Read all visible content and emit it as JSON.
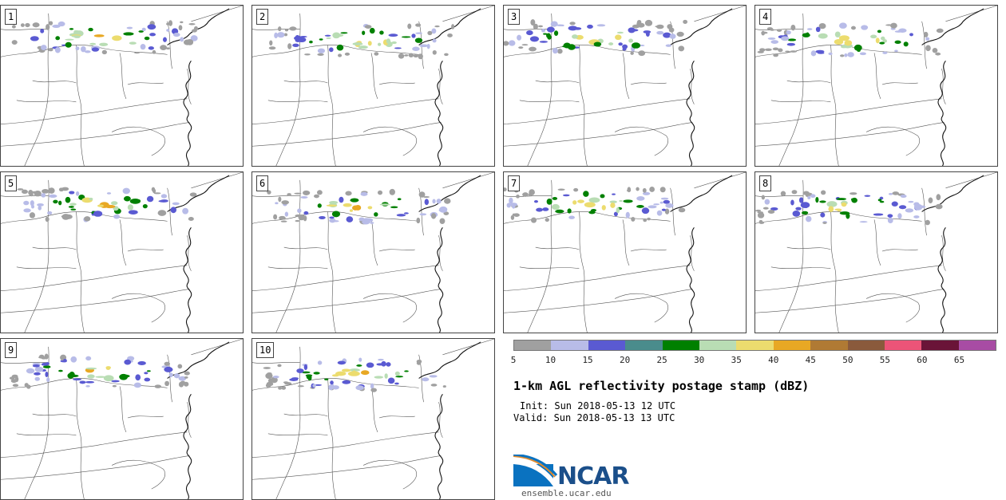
{
  "panels": [
    {
      "label": "1"
    },
    {
      "label": "2"
    },
    {
      "label": "3"
    },
    {
      "label": "4"
    },
    {
      "label": "5"
    },
    {
      "label": "6"
    },
    {
      "label": "7"
    },
    {
      "label": "8"
    },
    {
      "label": "9"
    },
    {
      "label": "10"
    }
  ],
  "legend": {
    "colors": [
      "#a0a0a0",
      "#b8bce8",
      "#5a5ad2",
      "#4a8c8c",
      "#008000",
      "#b9ddb4",
      "#ecdc6e",
      "#e8a824",
      "#b07a34",
      "#8a5a3c",
      "#ec5478",
      "#6a1438",
      "#a84ca4"
    ],
    "ticks": [
      "5",
      "10",
      "15",
      "20",
      "25",
      "30",
      "35",
      "40",
      "45",
      "50",
      "55",
      "60",
      "65"
    ]
  },
  "title": "1-km AGL reflectivity postage stamp (dBZ)",
  "init": "Init: Sun 2018-05-13 12 UTC",
  "valid": "Valid: Sun 2018-05-13 13 UTC",
  "logo": {
    "text": "NCAR",
    "url": "ensemble.ucar.edu"
  }
}
